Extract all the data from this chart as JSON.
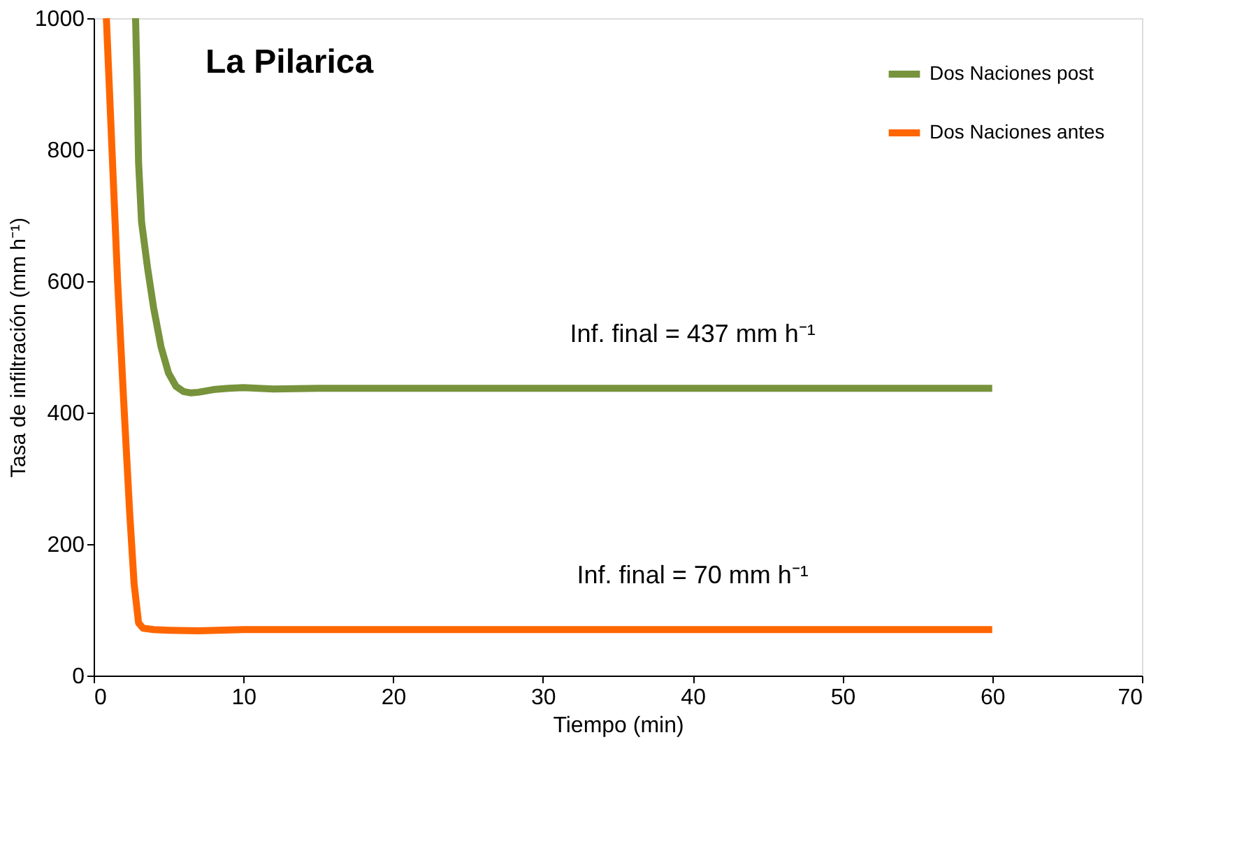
{
  "chart_data": {
    "type": "line",
    "title": "La Pilarica",
    "xlabel": "Tiempo (min)",
    "ylabel": "Tasa de infiltración (mm h⁻¹)",
    "xlim": [
      0,
      70
    ],
    "xticks": [
      0,
      10,
      20,
      30,
      40,
      50,
      60,
      70
    ],
    "ylim": [
      0,
      1000
    ],
    "yticks": [
      0,
      200,
      400,
      600,
      800,
      1000
    ],
    "grid": false,
    "legend": "top right",
    "line_style": "solid",
    "series": [
      {
        "name": "Dos Naciones post",
        "color": "#77933c",
        "x": [
          2.8,
          2.9,
          3.0,
          3.2,
          3.6,
          4.0,
          4.5,
          5.0,
          5.5,
          6.0,
          6.5,
          7.0,
          8.0,
          9.0,
          10,
          12,
          15,
          20,
          30,
          40,
          50,
          60
        ],
        "values": [
          1000,
          900,
          780,
          690,
          620,
          560,
          500,
          460,
          440,
          432,
          430,
          431,
          435,
          437,
          438,
          436,
          437,
          437,
          437,
          437,
          437,
          437
        ]
      },
      {
        "name": "Dos Naciones antes",
        "color": "#ff6600",
        "x": [
          0.85,
          1.0,
          1.3,
          1.6,
          2.0,
          2.4,
          2.7,
          3.0,
          3.3,
          4.0,
          5.0,
          7.0,
          10,
          20,
          30,
          40,
          50,
          60
        ],
        "values": [
          1000,
          920,
          760,
          600,
          420,
          250,
          140,
          80,
          72,
          70,
          69,
          68,
          70,
          70,
          70,
          70,
          70,
          70
        ]
      }
    ],
    "annotations": [
      {
        "text": "Inf. final = 437 mm h⁻¹",
        "x": 40,
        "y": 437
      },
      {
        "text": "Inf. final = 70 mm h⁻¹",
        "x": 40,
        "y": 70
      }
    ]
  }
}
